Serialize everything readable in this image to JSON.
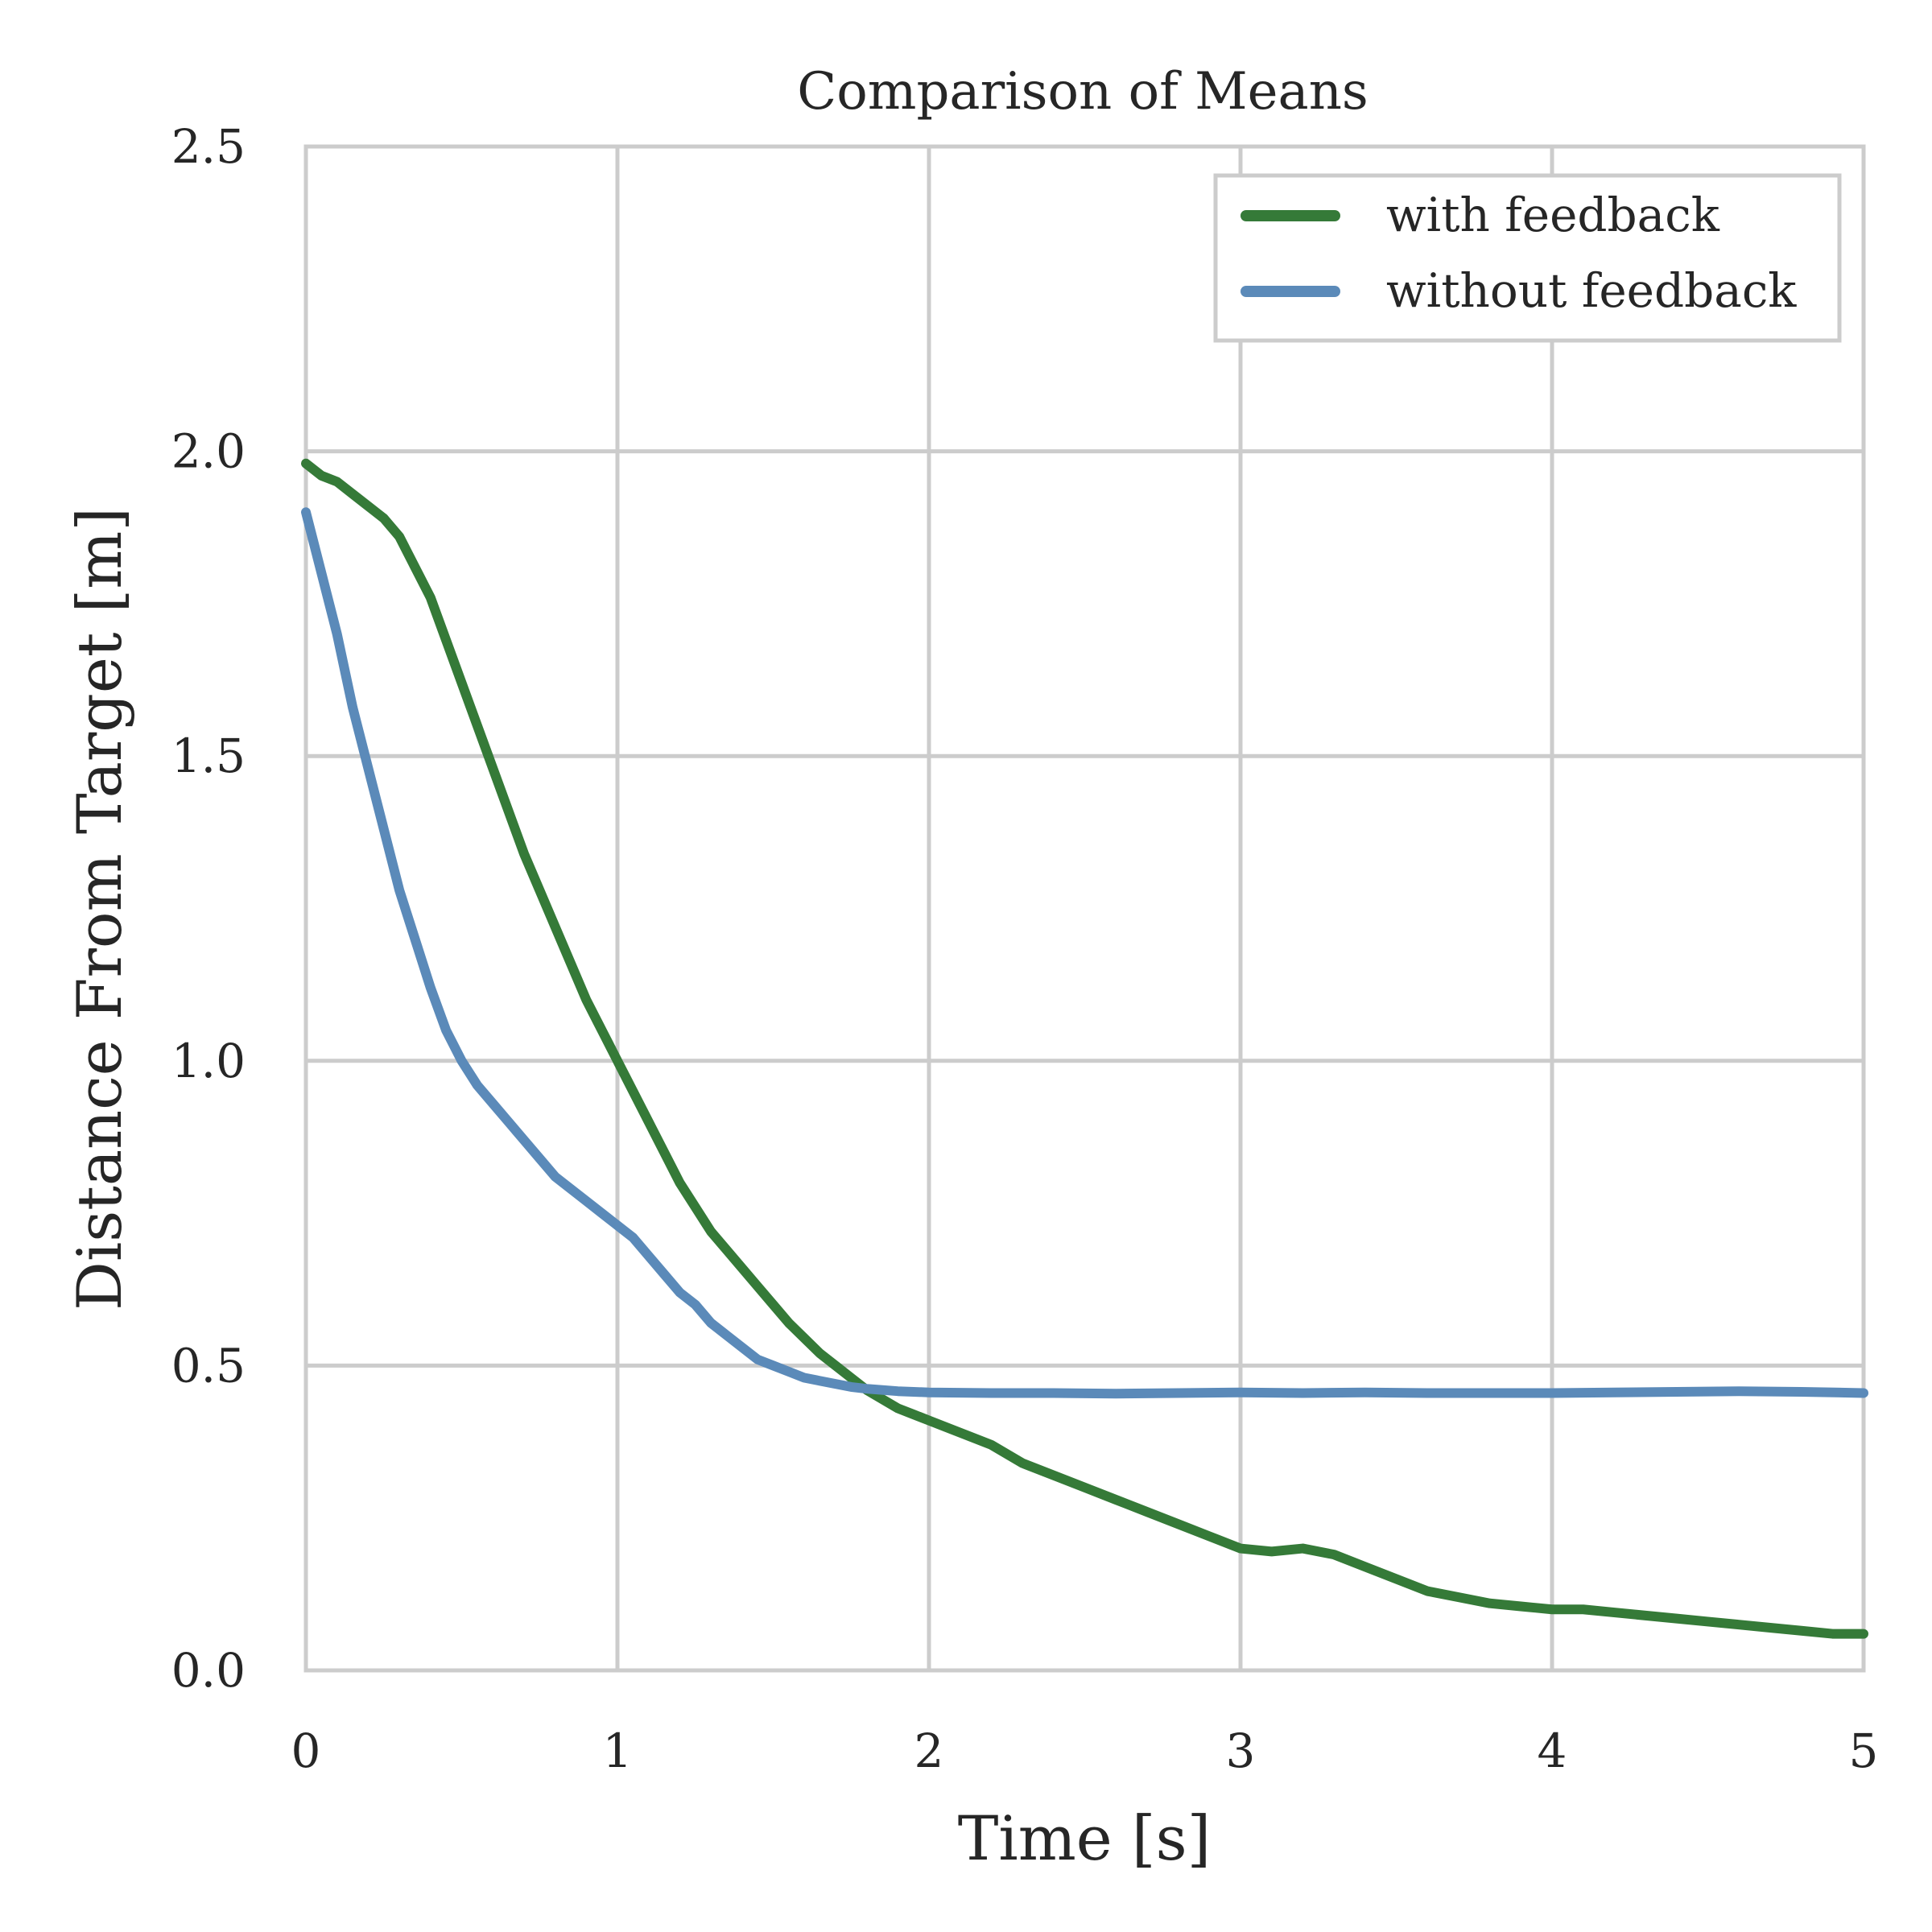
{
  "chart_data": {
    "type": "line",
    "title": "Comparison of Means",
    "xlabel": "Time [s]",
    "ylabel": "Distance From Target [m]",
    "xlim": [
      0,
      5
    ],
    "ylim": [
      0,
      2.5
    ],
    "xticks": [
      0,
      1,
      2,
      3,
      4,
      5
    ],
    "yticks": [
      0,
      0.5,
      1,
      1.5,
      2,
      2.5
    ],
    "xtick_labels": [
      "0",
      "1",
      "2",
      "3",
      "4",
      "5"
    ],
    "ytick_labels": [
      "0.0",
      "0.5",
      "1.0",
      "1.5",
      "2.0",
      "2.5"
    ],
    "grid": true,
    "legend_position": "top-right",
    "series": [
      {
        "name": "with feedback",
        "color": "#357a38",
        "x": [
          0,
          0.05,
          0.1,
          0.15,
          0.2,
          0.25,
          0.3,
          0.35,
          0.4,
          0.45,
          0.5,
          0.55,
          0.6,
          0.65,
          0.7,
          0.75,
          0.8,
          0.85,
          0.9,
          0.95,
          1,
          1.05,
          1.1,
          1.15,
          1.2,
          1.25,
          1.3,
          1.35,
          1.4,
          1.45,
          1.5,
          1.55,
          1.6,
          1.65,
          1.7,
          1.75,
          1.8,
          1.85,
          1.9,
          1.95,
          2,
          2.1,
          2.2,
          2.3,
          2.4,
          2.5,
          2.6,
          2.7,
          2.8,
          2.9,
          3,
          3.1,
          3.2,
          3.3,
          3.4,
          3.5,
          3.6,
          3.7,
          3.8,
          3.9,
          4,
          4.1,
          4.2,
          4.3,
          4.4,
          4.5,
          4.6,
          4.7,
          4.8,
          4.9,
          5
        ],
        "y": [
          1.98,
          1.96,
          1.95,
          1.93,
          1.91,
          1.89,
          1.86,
          1.81,
          1.76,
          1.69,
          1.62,
          1.55,
          1.48,
          1.41,
          1.34,
          1.28,
          1.22,
          1.16,
          1.1,
          1.05,
          1.0,
          0.95,
          0.9,
          0.85,
          0.8,
          0.76,
          0.72,
          0.69,
          0.66,
          0.63,
          0.6,
          0.57,
          0.545,
          0.52,
          0.5,
          0.48,
          0.46,
          0.445,
          0.43,
          0.42,
          0.41,
          0.39,
          0.37,
          0.34,
          0.32,
          0.3,
          0.28,
          0.26,
          0.24,
          0.22,
          0.2,
          0.195,
          0.2,
          0.19,
          0.17,
          0.15,
          0.13,
          0.12,
          0.11,
          0.105,
          0.1,
          0.1,
          0.095,
          0.09,
          0.085,
          0.08,
          0.075,
          0.07,
          0.065,
          0.06,
          0.06
        ]
      },
      {
        "name": "without feedback",
        "color": "#5b8ab9",
        "x": [
          0,
          0.05,
          0.1,
          0.15,
          0.2,
          0.25,
          0.3,
          0.35,
          0.4,
          0.45,
          0.5,
          0.55,
          0.6,
          0.65,
          0.7,
          0.75,
          0.8,
          0.85,
          0.9,
          0.95,
          1,
          1.05,
          1.1,
          1.15,
          1.2,
          1.25,
          1.3,
          1.35,
          1.4,
          1.45,
          1.5,
          1.55,
          1.6,
          1.65,
          1.7,
          1.75,
          1.8,
          1.85,
          1.9,
          1.95,
          2,
          2.2,
          2.4,
          2.6,
          2.8,
          3,
          3.2,
          3.4,
          3.6,
          3.8,
          4,
          4.2,
          4.4,
          4.6,
          4.8,
          5
        ],
        "y": [
          1.9,
          1.8,
          1.7,
          1.58,
          1.48,
          1.38,
          1.28,
          1.2,
          1.12,
          1.05,
          1.0,
          0.96,
          0.93,
          0.9,
          0.87,
          0.84,
          0.81,
          0.79,
          0.77,
          0.75,
          0.73,
          0.71,
          0.68,
          0.65,
          0.62,
          0.6,
          0.57,
          0.55,
          0.53,
          0.51,
          0.5,
          0.49,
          0.48,
          0.475,
          0.47,
          0.465,
          0.462,
          0.46,
          0.458,
          0.457,
          0.456,
          0.455,
          0.455,
          0.454,
          0.455,
          0.456,
          0.455,
          0.456,
          0.455,
          0.455,
          0.455,
          0.456,
          0.457,
          0.458,
          0.457,
          0.455
        ]
      }
    ]
  }
}
